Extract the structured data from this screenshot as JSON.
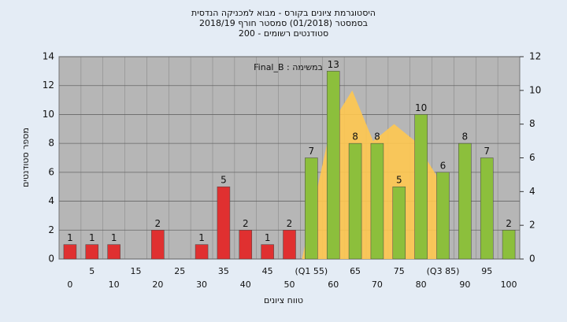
{
  "chart_data": {
    "type": "bar",
    "title": "היסטוגרמת ציונים בקורס - מבוא למכניקה הנדסית",
    "subtitle": "בסמסטר  (01/2018)  סמסטר חורף 2018/19",
    "subtitle2": "סטודנטים רשומים - 200",
    "annotation": "Final_B : במשימה",
    "x_label": "טווח ציונים",
    "y_label": "מספר סטודנטים",
    "categories": [
      "0",
      "5",
      "10",
      "15",
      "20",
      "25",
      "30",
      "35",
      "40",
      "45",
      "50",
      "(Q1 55)",
      "60",
      "65",
      "70",
      "75",
      "80",
      "(Q3 85)",
      "90",
      "95",
      "100"
    ],
    "values": [
      1,
      1,
      1,
      0,
      2,
      0,
      1,
      5,
      2,
      1,
      2,
      7,
      13,
      8,
      8,
      5,
      10,
      6,
      8,
      7,
      2
    ],
    "colors": [
      "#e03030",
      "#e03030",
      "#e03030",
      "#e03030",
      "#e03030",
      "#e03030",
      "#e03030",
      "#e03030",
      "#e03030",
      "#e03030",
      "#e03030",
      "#8cbf3c",
      "#8cbf3c",
      "#8cbf3c",
      "#8cbf3c",
      "#8cbf3c",
      "#8cbf3c",
      "#8cbf3c",
      "#8cbf3c",
      "#8cbf3c",
      "#8cbf3c"
    ],
    "area": {
      "color": "#ffc850",
      "axis": "y2",
      "x": [
        53,
        60,
        65,
        70,
        75,
        80,
        85,
        88
      ],
      "values": [
        0,
        8,
        10,
        7,
        8,
        7,
        5,
        2
      ]
    },
    "ylim": [
      0,
      14
    ],
    "yticks": [
      0,
      2,
      4,
      6,
      8,
      10,
      12,
      14
    ],
    "y2lim": [
      0,
      12
    ],
    "y2ticks": [
      0,
      2,
      4,
      6,
      8,
      10,
      12
    ],
    "xlim": [
      -5,
      105
    ],
    "grid": true
  }
}
